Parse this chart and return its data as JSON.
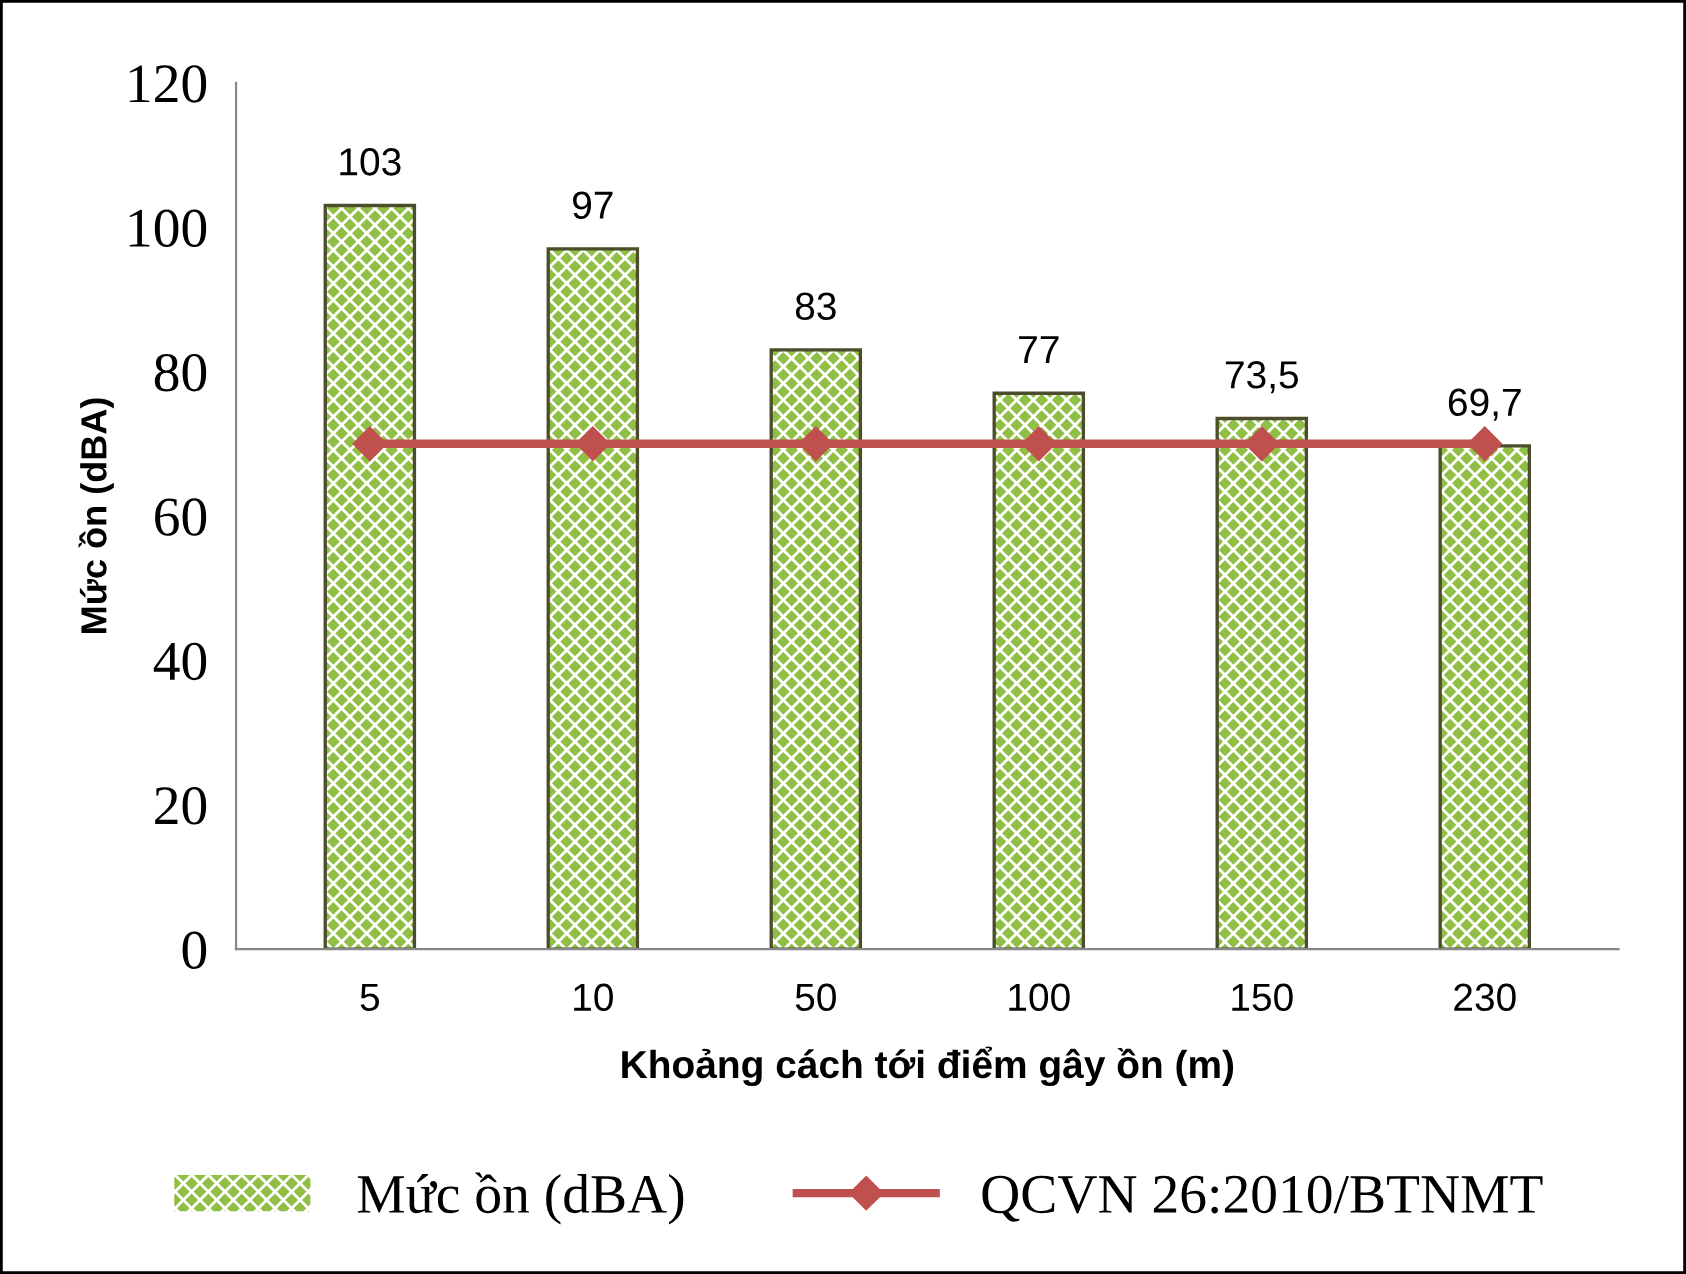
{
  "chart_data": {
    "type": "bar",
    "xlabel": "Khoảng cách tới điểm gây ồn (m)",
    "ylabel": "Mức ồn (dBA)",
    "categories": [
      "5",
      "10",
      "50",
      "100",
      "150",
      "230"
    ],
    "series": [
      {
        "name": "Mức ồn (dBA)",
        "color": "#8fbf45",
        "values": [
          103,
          97,
          83,
          77,
          73.5,
          69.7
        ],
        "value_labels": [
          "103",
          "97",
          "83",
          "77",
          "73,5",
          "69,7"
        ]
      },
      {
        "name": "QCVN 26:2010/BTNMT",
        "type": "line",
        "color": "#c0504d",
        "values": [
          70,
          70,
          70,
          70,
          70,
          70
        ],
        "marker": "diamond",
        "line_style": "solid"
      }
    ],
    "ylim": [
      0,
      120
    ],
    "yticks": [
      0,
      20,
      40,
      60,
      80,
      100,
      120
    ],
    "grid": false,
    "legend": "bottom"
  }
}
